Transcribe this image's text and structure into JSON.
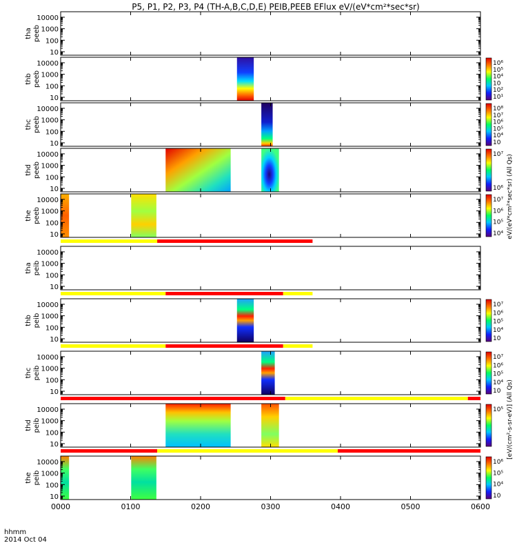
{
  "chart_data": {
    "type": "heatmap",
    "title": "P5, P1, P2, P3, P4 (TH-A,B,C,D,E) PEIB,PEEB EFlux eV/(eV*cm²*sec*sr)",
    "x_ticks": [
      "0000",
      "0100",
      "0200",
      "0300",
      "0400",
      "0500",
      "0600"
    ],
    "x_range_hours": [
      0,
      6
    ],
    "x_corner_label": [
      "hhmm",
      "2014 Oct 04"
    ],
    "y_scale": "log",
    "y_range": [
      5,
      30000
    ],
    "y_ticks": [
      10,
      100,
      1000,
      10000
    ],
    "colorscale": [
      "#5a007a",
      "#1020ff",
      "#00c8ff",
      "#00ff60",
      "#ffff00",
      "#ff7000",
      "#e00000"
    ],
    "panels": [
      {
        "label": "tha peeb",
        "ylabels": [
          "tha",
          "peeb"
        ],
        "colorbar": null,
        "blocks": []
      },
      {
        "label": "thb peeb",
        "ylabels": [
          "thb",
          "peeb"
        ],
        "colorbar": {
          "ticks": [
            "10⁶",
            "10⁵",
            "10⁴",
            "10⁳",
            "10²",
            "10¹"
          ]
        },
        "blocks": [
          {
            "t0": 4.2,
            "t1": 4.6,
            "style": "vband_b"
          }
        ]
      },
      {
        "label": "thc peeb",
        "ylabels": [
          "thc",
          "peeb"
        ],
        "colorbar": {
          "ticks": [
            "10⁸",
            "10⁷",
            "10⁶",
            "10⁵",
            "10⁴",
            "10⁳"
          ]
        },
        "blocks": [
          {
            "t0": 4.78,
            "t1": 5.05,
            "style": "vband_c"
          }
        ]
      },
      {
        "label": "thd peeb",
        "ylabels": [
          "thd",
          "peeb"
        ],
        "colorbar": {
          "ticks": [
            "10⁷",
            "10⁶"
          ]
        },
        "blocks": [
          {
            "t0": 2.5,
            "t1": 4.05,
            "style": "shell"
          },
          {
            "t0": 4.78,
            "t1": 5.2,
            "style": "blue_core"
          }
        ]
      },
      {
        "label": "the peeb",
        "ylabels": [
          "the",
          "peeb"
        ],
        "colorbar": {
          "ticks": [
            "10⁷",
            "10⁶",
            "10⁵",
            "10⁴"
          ]
        },
        "blocks": [
          {
            "t0": 0.0,
            "t1": 0.2,
            "style": "orange"
          },
          {
            "t0": 1.68,
            "t1": 2.28,
            "style": "yellow_green"
          }
        ]
      },
      {
        "label": "tha peib",
        "ylabels": [
          "tha",
          "peib"
        ],
        "colorbar": null,
        "blocks": []
      },
      {
        "label": "thb peib",
        "ylabels": [
          "thb",
          "peib"
        ],
        "colorbar": {
          "ticks": [
            "10⁷",
            "10⁶",
            "10⁵",
            "10⁴",
            "10⁳"
          ]
        },
        "blocks": [
          {
            "t0": 4.2,
            "t1": 4.6,
            "style": "ion_b"
          }
        ]
      },
      {
        "label": "thc peib",
        "ylabels": [
          "thc",
          "peib"
        ],
        "colorbar": {
          "ticks": [
            "10⁷",
            "10⁶",
            "10⁵",
            "10⁴",
            "10⁳"
          ]
        },
        "blocks": [
          {
            "t0": 4.78,
            "t1": 5.1,
            "style": "ion_b"
          }
        ]
      },
      {
        "label": "thd peib",
        "ylabels": [
          "thd",
          "peib"
        ],
        "colorbar": {
          "ticks": [
            "10⁵"
          ]
        },
        "blocks": [
          {
            "t0": 2.5,
            "t1": 4.05,
            "style": "ion_d"
          },
          {
            "t0": 4.78,
            "t1": 5.2,
            "style": "ion_d2"
          }
        ]
      },
      {
        "label": "the peib",
        "ylabels": [
          "the",
          "peib"
        ],
        "colorbar": {
          "ticks": [
            "10⁶",
            "10⁵",
            "10⁴",
            "10⁳"
          ]
        },
        "blocks": [
          {
            "t0": 0.0,
            "t1": 0.2,
            "style": "ion_e"
          },
          {
            "t0": 1.68,
            "t1": 2.28,
            "style": "ion_e"
          }
        ]
      }
    ],
    "mode_bars": [
      {
        "after_panel": 4,
        "segments": [
          {
            "t0": 0,
            "t1": 2.3,
            "color": "#ffff00"
          },
          {
            "t0": 2.3,
            "t1": 6,
            "color": "#ff0000"
          }
        ]
      },
      {
        "after_panel": 5,
        "segments": [
          {
            "t0": 0,
            "t1": 2.5,
            "color": "#ffff00"
          },
          {
            "t0": 2.5,
            "t1": 5.3,
            "color": "#ff0000"
          },
          {
            "t0": 5.3,
            "t1": 6,
            "color": "#ffff00"
          }
        ]
      },
      {
        "after_panel": 6,
        "segments": [
          {
            "t0": 0,
            "t1": 2.5,
            "color": "#ffff00"
          },
          {
            "t0": 2.5,
            "t1": 5.3,
            "color": "#ff0000"
          },
          {
            "t0": 5.3,
            "t1": 6,
            "color": "#ffff00"
          }
        ]
      },
      {
        "after_panel": 7,
        "segments": [
          {
            "t0": 0,
            "t1": 5.35,
            "color": "#ff0000"
          },
          {
            "t0": 5.35,
            "t1": 9.7,
            "color": "#ffff00"
          },
          {
            "t0": 9.7,
            "t1": 10.2,
            "color": "#ff0000"
          }
        ]
      },
      {
        "after_panel": 8,
        "segments": [
          {
            "t0": 0,
            "t1": 2.3,
            "color": "#ff0000"
          },
          {
            "t0": 2.3,
            "t1": 6.6,
            "color": "#ffff00"
          },
          {
            "t0": 6.6,
            "t1": 10.2,
            "color": "#ff0000"
          }
        ]
      }
    ],
    "right_labels": [
      "eV/(eV*cm²*sec*sr)  (All Qs)",
      "[eV/(cm²-s-sr-eV)]  (All Qs)"
    ]
  }
}
